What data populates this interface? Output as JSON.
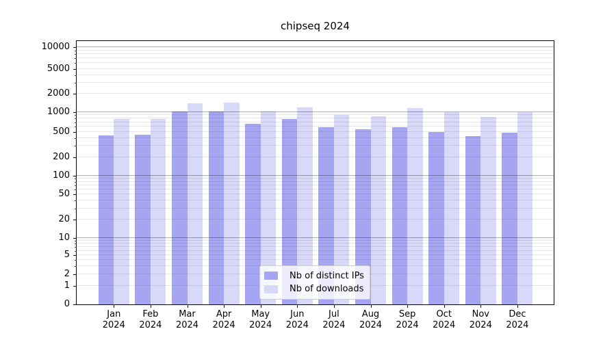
{
  "title": "chipseq 2024",
  "colors": {
    "ips_bar": "#a5a5f2",
    "downloads_bar": "#d8d8f8",
    "major_gridline": "#b3b3b3",
    "minor_gridline": "#e9e9e9",
    "axis": "#000000",
    "legend_border": "#cccccc"
  },
  "chart_data": {
    "type": "bar",
    "title": "chipseq 2024",
    "categories": [
      "Jan",
      "Feb",
      "Mar",
      "Apr",
      "May",
      "Jun",
      "Jul",
      "Aug",
      "Sep",
      "Oct",
      "Nov",
      "Dec"
    ],
    "year": "2024",
    "series": [
      {
        "name": "Nb of distinct IPs",
        "color": "#a5a5f2",
        "values": [
          440,
          455,
          1020,
          1010,
          655,
          780,
          580,
          550,
          590,
          500,
          425,
          490
        ]
      },
      {
        "name": "Nb of downloads",
        "color": "#d8d8f8",
        "values": [
          775,
          780,
          1390,
          1430,
          1010,
          1200,
          900,
          855,
          1160,
          980,
          840,
          1000
        ]
      }
    ],
    "yscale": "symlog",
    "yticks": [
      0,
      1,
      2,
      5,
      10,
      20,
      50,
      100,
      200,
      500,
      1000,
      2000,
      5000,
      10000
    ],
    "ylim": [
      0,
      10000
    ],
    "grid": true,
    "legend_position": "lower center"
  }
}
